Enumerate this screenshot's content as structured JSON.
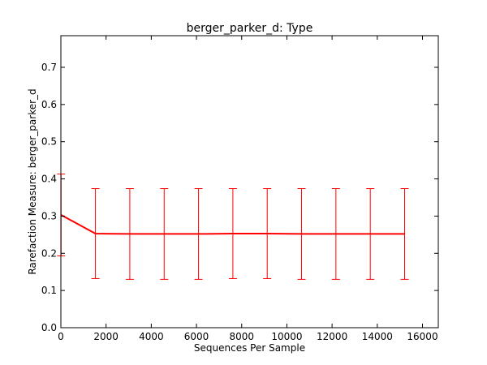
{
  "chart_data": {
    "type": "line",
    "title": "berger_parker_d: Type",
    "xlabel": "Sequences Per Sample",
    "ylabel": "Rarefaction Measure: berger_parker_d",
    "xlim": [
      0,
      16700
    ],
    "ylim": [
      0,
      0.785
    ],
    "x_ticks": [
      0,
      2000,
      4000,
      6000,
      8000,
      10000,
      12000,
      14000,
      16000
    ],
    "y_ticks": [
      0.0,
      0.1,
      0.2,
      0.3,
      0.4,
      0.5,
      0.6,
      0.7
    ],
    "grid": false,
    "legend": "none",
    "series": [
      {
        "color": "#ff0000",
        "x": [
          10,
          1530,
          3050,
          4570,
          6090,
          7610,
          9130,
          10650,
          12170,
          13690,
          15210
        ],
        "y": [
          0.303,
          0.253,
          0.252,
          0.252,
          0.252,
          0.253,
          0.253,
          0.252,
          0.252,
          0.252,
          0.252
        ],
        "err": [
          0.11,
          0.121,
          0.122,
          0.122,
          0.122,
          0.121,
          0.121,
          0.122,
          0.122,
          0.122,
          0.122
        ]
      }
    ]
  }
}
